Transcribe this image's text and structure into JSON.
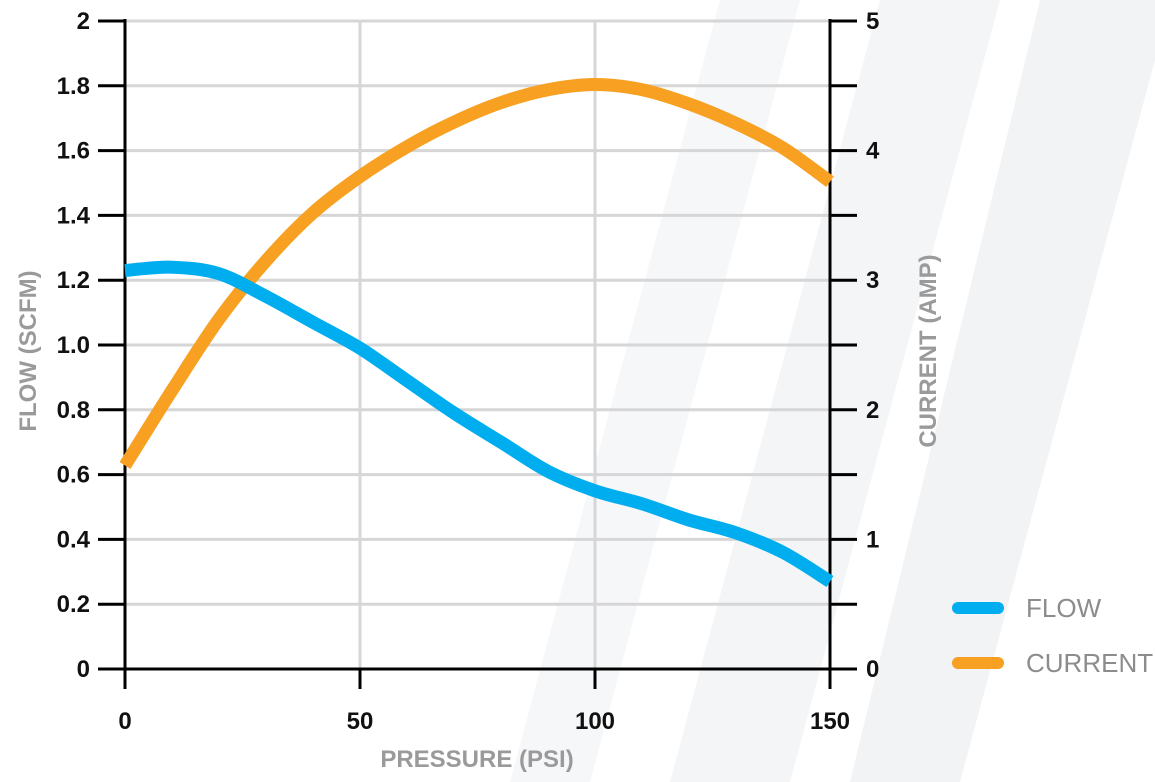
{
  "chart_data": {
    "type": "line",
    "xlabel": "PRESSURE (PSI)",
    "ylabel": "FLOW (SCFM)",
    "y2label": "CURRENT (AMP)",
    "xlim": [
      0,
      150
    ],
    "ylim": [
      0,
      2
    ],
    "y2lim": [
      0,
      5
    ],
    "x_ticks": [
      "0",
      "50",
      "100",
      "150"
    ],
    "y_ticks": [
      "0",
      "0.2",
      "0.4",
      "0.6",
      "0.8",
      "1.0",
      "1.2",
      "1.4",
      "1.6",
      "1.8",
      "2"
    ],
    "y2_ticks": [
      "0",
      "1",
      "2",
      "3",
      "4",
      "5"
    ],
    "grid": true,
    "legend_position": "bottom-right",
    "series": [
      {
        "name": "FLOW",
        "axis": "left",
        "color": "#00aeef",
        "x": [
          0,
          10,
          20,
          30,
          40,
          50,
          60,
          70,
          80,
          90,
          100,
          110,
          120,
          130,
          140,
          150
        ],
        "y": [
          1.23,
          1.24,
          1.22,
          1.15,
          1.07,
          0.99,
          0.89,
          0.79,
          0.7,
          0.61,
          0.55,
          0.51,
          0.46,
          0.42,
          0.36,
          0.27
        ]
      },
      {
        "name": "CURRENT",
        "axis": "right",
        "color": "#f7a021",
        "x": [
          0,
          10,
          20,
          30,
          40,
          50,
          60,
          70,
          80,
          90,
          100,
          110,
          120,
          130,
          140,
          150
        ],
        "y": [
          1.57,
          2.15,
          2.7,
          3.15,
          3.52,
          3.8,
          4.03,
          4.22,
          4.37,
          4.47,
          4.51,
          4.47,
          4.36,
          4.21,
          4.02,
          3.76
        ]
      }
    ]
  }
}
